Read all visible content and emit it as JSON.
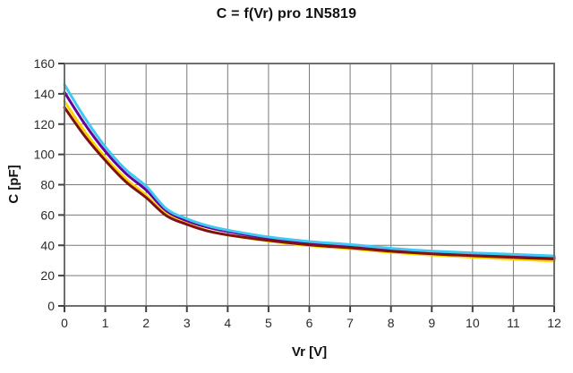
{
  "title": "C = f(Vr) pro 1N5819",
  "chart_data": {
    "type": "line",
    "title": "C = f(Vr) pro 1N5819",
    "xlabel": "Vr [V]",
    "ylabel": "C [pF]",
    "xlim": [
      0,
      12
    ],
    "ylim": [
      0,
      160
    ],
    "x_ticks": [
      0,
      1,
      2,
      3,
      4,
      5,
      6,
      7,
      8,
      9,
      10,
      11,
      12
    ],
    "y_ticks": [
      0,
      20,
      40,
      60,
      80,
      100,
      120,
      140,
      160
    ],
    "grid": true,
    "legend_position": "none",
    "x": [
      0,
      0.5,
      1,
      1.5,
      2,
      2.5,
      3,
      3.5,
      4,
      5,
      6,
      7,
      8,
      9,
      10,
      11,
      12
    ],
    "series": [
      {
        "name": "series-purple",
        "color": "#660099",
        "values": [
          141,
          120,
          102,
          87.5,
          76.5,
          62.5,
          56.2,
          52,
          49.1,
          44.8,
          41.8,
          39.8,
          37.3,
          35.5,
          34.3,
          33.3,
          32.2
        ]
      },
      {
        "name": "series-yellow",
        "color": "#FFD400",
        "values": [
          135,
          115,
          98,
          84,
          73,
          60.5,
          54.3,
          49.8,
          46.8,
          42.8,
          39.8,
          37.8,
          35.4,
          33.6,
          32.2,
          30.9,
          29.6
        ]
      },
      {
        "name": "series-dark-red",
        "color": "#7E1212",
        "values": [
          131,
          112,
          96,
          82,
          71.5,
          59.5,
          53.8,
          49.5,
          46.9,
          43.2,
          40.3,
          38.4,
          36.1,
          34.4,
          33.1,
          32.0,
          31.0
        ]
      },
      {
        "name": "series-cyan",
        "color": "#3FC9F2",
        "values": [
          146,
          124,
          105,
          90,
          79,
          64,
          57.5,
          53,
          50,
          45.5,
          42.5,
          40.5,
          38,
          36.2,
          35,
          34,
          33
        ]
      }
    ],
    "colors": {
      "background": "#ffffff",
      "plot_background": "#ffffff",
      "gridline": "#7a7a7a",
      "border": "#6e6e6e",
      "tick": "#404040",
      "text": "#2b2b2b"
    }
  }
}
